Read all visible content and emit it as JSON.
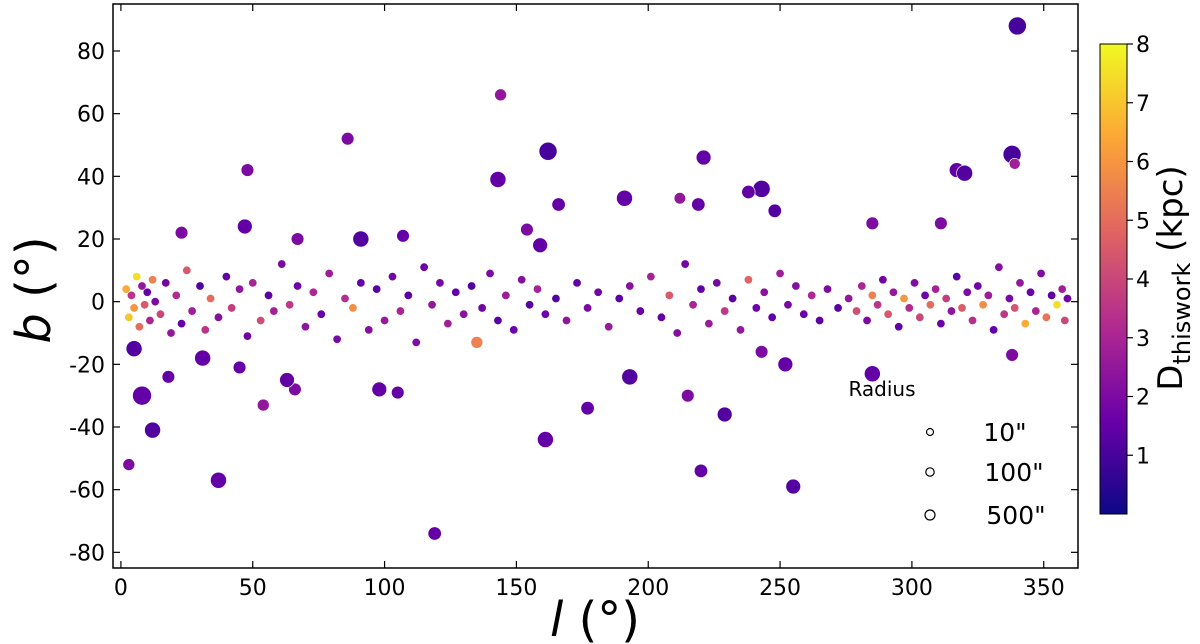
{
  "chart_data": {
    "type": "scatter",
    "xlabel_main": "l",
    "xlabel_unit": " (°)",
    "ylabel_main": "b",
    "ylabel_unit": " (°)",
    "xlim": [
      -3,
      363
    ],
    "ylim": [
      -85,
      95
    ],
    "xticks": [
      0,
      50,
      100,
      150,
      200,
      250,
      300,
      350
    ],
    "yticks": [
      -80,
      -60,
      -40,
      -20,
      0,
      20,
      40,
      60,
      80
    ],
    "grid": false,
    "colorbar": {
      "label_main": "D",
      "label_sub": "thiswork",
      "label_unit": " (kpc)",
      "range": [
        0,
        8
      ],
      "ticks": [
        1,
        2,
        3,
        4,
        5,
        6,
        7,
        8
      ],
      "colors": [
        "#0d0887",
        "#6a00a8",
        "#b12a90",
        "#e16462",
        "#fca636",
        "#f0f921"
      ]
    },
    "size_legend": {
      "title": "Radius",
      "placement": "lower-right",
      "entries": [
        {
          "label": "10\"",
          "radius_arcsec": 10
        },
        {
          "label": "100\"",
          "radius_arcsec": 100
        },
        {
          "label": "500\"",
          "radius_arcsec": 500
        }
      ]
    },
    "notable_points": [
      {
        "l": 340,
        "b": 88,
        "d": 1.0,
        "r": 300
      },
      {
        "l": 144,
        "b": 66,
        "d": 2.5,
        "r": 60
      },
      {
        "l": 86,
        "b": 52,
        "d": 2.0,
        "r": 80
      },
      {
        "l": 162,
        "b": 48,
        "d": 1.0,
        "r": 300
      },
      {
        "l": 221,
        "b": 46,
        "d": 1.5,
        "r": 150
      },
      {
        "l": 338,
        "b": 47,
        "d": 1.0,
        "r": 300
      },
      {
        "l": 339,
        "b": 44,
        "d": 2.8,
        "r": 40
      },
      {
        "l": 48,
        "b": 42,
        "d": 2.0,
        "r": 80
      },
      {
        "l": 317,
        "b": 42,
        "d": 1.5,
        "r": 150
      },
      {
        "l": 320,
        "b": 41,
        "d": 1.2,
        "r": 200
      },
      {
        "l": 143,
        "b": 39,
        "d": 1.5,
        "r": 200
      },
      {
        "l": 243,
        "b": 36,
        "d": 1.2,
        "r": 250
      },
      {
        "l": 238,
        "b": 35,
        "d": 1.5,
        "r": 100
      },
      {
        "l": 191,
        "b": 33,
        "d": 1.5,
        "r": 200
      },
      {
        "l": 212,
        "b": 33,
        "d": 2.5,
        "r": 50
      },
      {
        "l": 219,
        "b": 31,
        "d": 1.5,
        "r": 100
      },
      {
        "l": 166,
        "b": 31,
        "d": 1.5,
        "r": 100
      },
      {
        "l": 248,
        "b": 29,
        "d": 1.2,
        "r": 100
      },
      {
        "l": 285,
        "b": 25,
        "d": 2.0,
        "r": 80
      },
      {
        "l": 311,
        "b": 25,
        "d": 2.0,
        "r": 80
      },
      {
        "l": 47,
        "b": 24,
        "d": 1.5,
        "r": 150
      },
      {
        "l": 23,
        "b": 22,
        "d": 2.0,
        "r": 80
      },
      {
        "l": 154,
        "b": 23,
        "d": 2.0,
        "r": 80
      },
      {
        "l": 107,
        "b": 21,
        "d": 1.5,
        "r": 80
      },
      {
        "l": 91,
        "b": 20,
        "d": 1.2,
        "r": 200
      },
      {
        "l": 67,
        "b": 20,
        "d": 2.0,
        "r": 80
      },
      {
        "l": 159,
        "b": 18,
        "d": 1.5,
        "r": 150
      },
      {
        "l": 8,
        "b": -30,
        "d": 1.5,
        "r": 350
      },
      {
        "l": 12,
        "b": -41,
        "d": 1.2,
        "r": 200
      },
      {
        "l": 3,
        "b": -52,
        "d": 2.0,
        "r": 60
      },
      {
        "l": 5,
        "b": -15,
        "d": 1.2,
        "r": 200
      },
      {
        "l": 31,
        "b": -18,
        "d": 1.5,
        "r": 200
      },
      {
        "l": 37,
        "b": -57,
        "d": 1.5,
        "r": 200
      },
      {
        "l": 54,
        "b": -33,
        "d": 2.5,
        "r": 60
      },
      {
        "l": 66,
        "b": -28,
        "d": 2.0,
        "r": 80
      },
      {
        "l": 63,
        "b": -25,
        "d": 1.5,
        "r": 150
      },
      {
        "l": 98,
        "b": -28,
        "d": 1.5,
        "r": 150
      },
      {
        "l": 105,
        "b": -29,
        "d": 1.5,
        "r": 80
      },
      {
        "l": 119,
        "b": -74,
        "d": 1.5,
        "r": 100
      },
      {
        "l": 161,
        "b": -44,
        "d": 1.5,
        "r": 200
      },
      {
        "l": 177,
        "b": -34,
        "d": 1.5,
        "r": 100
      },
      {
        "l": 193,
        "b": -24,
        "d": 1.2,
        "r": 200
      },
      {
        "l": 215,
        "b": -30,
        "d": 2.0,
        "r": 80
      },
      {
        "l": 220,
        "b": -54,
        "d": 1.5,
        "r": 100
      },
      {
        "l": 229,
        "b": -36,
        "d": 1.2,
        "r": 150
      },
      {
        "l": 255,
        "b": -59,
        "d": 1.2,
        "r": 150
      },
      {
        "l": 252,
        "b": -20,
        "d": 1.5,
        "r": 150
      },
      {
        "l": 285,
        "b": -23,
        "d": 1.5,
        "r": 200
      },
      {
        "l": 243,
        "b": -16,
        "d": 2.0,
        "r": 80
      },
      {
        "l": 338,
        "b": -17,
        "d": 2.0,
        "r": 80
      },
      {
        "l": 135,
        "b": -13,
        "d": 5.5,
        "r": 60
      },
      {
        "l": 45,
        "b": -21,
        "d": 1.5,
        "r": 80
      },
      {
        "l": 18,
        "b": -24,
        "d": 1.5,
        "r": 80
      }
    ],
    "band_points": [
      {
        "l": 2,
        "b": 4,
        "d": 6.5
      },
      {
        "l": 3,
        "b": -5,
        "d": 7.0
      },
      {
        "l": 4,
        "b": 2,
        "d": 3.5
      },
      {
        "l": 5,
        "b": -2,
        "d": 6.0
      },
      {
        "l": 6,
        "b": 8,
        "d": 7.5
      },
      {
        "l": 7,
        "b": -8,
        "d": 5.0
      },
      {
        "l": 8,
        "b": 5,
        "d": 2.5
      },
      {
        "l": 9,
        "b": -1,
        "d": 4.5
      },
      {
        "l": 10,
        "b": 3,
        "d": 1.5
      },
      {
        "l": 11,
        "b": -6,
        "d": 3.0
      },
      {
        "l": 12,
        "b": 7,
        "d": 5.5
      },
      {
        "l": 13,
        "b": 0,
        "d": 2.0
      },
      {
        "l": 15,
        "b": -4,
        "d": 4.0
      },
      {
        "l": 17,
        "b": 6,
        "d": 1.8
      },
      {
        "l": 19,
        "b": -10,
        "d": 2.5
      },
      {
        "l": 21,
        "b": 2,
        "d": 3.2
      },
      {
        "l": 23,
        "b": -7,
        "d": 1.5
      },
      {
        "l": 25,
        "b": 10,
        "d": 4.5
      },
      {
        "l": 27,
        "b": -3,
        "d": 2.8
      },
      {
        "l": 30,
        "b": 5,
        "d": 1.2
      },
      {
        "l": 32,
        "b": -9,
        "d": 3.5
      },
      {
        "l": 34,
        "b": 1,
        "d": 5.0
      },
      {
        "l": 37,
        "b": -5,
        "d": 2.2
      },
      {
        "l": 40,
        "b": 8,
        "d": 1.5
      },
      {
        "l": 42,
        "b": -2,
        "d": 3.8
      },
      {
        "l": 45,
        "b": 4,
        "d": 2.5
      },
      {
        "l": 48,
        "b": -11,
        "d": 1.8
      },
      {
        "l": 50,
        "b": 6,
        "d": 3.0
      },
      {
        "l": 53,
        "b": -6,
        "d": 4.2
      },
      {
        "l": 56,
        "b": 2,
        "d": 1.4
      },
      {
        "l": 58,
        "b": -3,
        "d": 2.9
      },
      {
        "l": 61,
        "b": 12,
        "d": 2.0
      },
      {
        "l": 64,
        "b": -1,
        "d": 3.6
      },
      {
        "l": 67,
        "b": 5,
        "d": 1.7
      },
      {
        "l": 70,
        "b": -8,
        "d": 2.4
      },
      {
        "l": 73,
        "b": 3,
        "d": 3.1
      },
      {
        "l": 76,
        "b": -4,
        "d": 1.6
      },
      {
        "l": 79,
        "b": 9,
        "d": 2.7
      },
      {
        "l": 82,
        "b": -12,
        "d": 1.9
      },
      {
        "l": 85,
        "b": 1,
        "d": 3.3
      },
      {
        "l": 88,
        "b": -2,
        "d": 5.8
      },
      {
        "l": 91,
        "b": 6,
        "d": 1.5
      },
      {
        "l": 94,
        "b": -9,
        "d": 2.2
      },
      {
        "l": 97,
        "b": 4,
        "d": 1.3
      },
      {
        "l": 100,
        "b": -6,
        "d": 2.6
      },
      {
        "l": 103,
        "b": 8,
        "d": 1.8
      },
      {
        "l": 106,
        "b": -3,
        "d": 3.0
      },
      {
        "l": 109,
        "b": 2,
        "d": 1.4
      },
      {
        "l": 112,
        "b": -13,
        "d": 2.1
      },
      {
        "l": 115,
        "b": 11,
        "d": 1.6
      },
      {
        "l": 118,
        "b": -1,
        "d": 2.5
      },
      {
        "l": 121,
        "b": 6,
        "d": 1.9
      },
      {
        "l": 124,
        "b": -7,
        "d": 2.8
      },
      {
        "l": 127,
        "b": 3,
        "d": 1.5
      },
      {
        "l": 130,
        "b": -4,
        "d": 2.3
      },
      {
        "l": 133,
        "b": 5,
        "d": 1.2
      },
      {
        "l": 137,
        "b": -2,
        "d": 1.8
      },
      {
        "l": 140,
        "b": 9,
        "d": 2.0
      },
      {
        "l": 143,
        "b": -6,
        "d": 1.4
      },
      {
        "l": 146,
        "b": 2,
        "d": 2.7
      },
      {
        "l": 149,
        "b": -9,
        "d": 1.6
      },
      {
        "l": 152,
        "b": 7,
        "d": 2.2
      },
      {
        "l": 155,
        "b": -1,
        "d": 1.3
      },
      {
        "l": 158,
        "b": 4,
        "d": 2.9
      },
      {
        "l": 161,
        "b": -4,
        "d": 1.7
      },
      {
        "l": 165,
        "b": 1,
        "d": 1.2
      },
      {
        "l": 169,
        "b": -6,
        "d": 2.4
      },
      {
        "l": 173,
        "b": 6,
        "d": 1.5
      },
      {
        "l": 177,
        "b": -2,
        "d": 2.0
      },
      {
        "l": 181,
        "b": 3,
        "d": 1.8
      },
      {
        "l": 185,
        "b": -8,
        "d": 2.6
      },
      {
        "l": 189,
        "b": 1,
        "d": 1.4
      },
      {
        "l": 193,
        "b": 5,
        "d": 2.3
      },
      {
        "l": 197,
        "b": -3,
        "d": 1.6
      },
      {
        "l": 201,
        "b": 8,
        "d": 2.9
      },
      {
        "l": 205,
        "b": -5,
        "d": 1.5
      },
      {
        "l": 208,
        "b": 2,
        "d": 4.5
      },
      {
        "l": 211,
        "b": -10,
        "d": 2.2
      },
      {
        "l": 214,
        "b": 12,
        "d": 1.8
      },
      {
        "l": 217,
        "b": -1,
        "d": 3.0
      },
      {
        "l": 220,
        "b": 4,
        "d": 1.5
      },
      {
        "l": 223,
        "b": -7,
        "d": 2.7
      },
      {
        "l": 226,
        "b": 6,
        "d": 1.9
      },
      {
        "l": 229,
        "b": -3,
        "d": 3.6
      },
      {
        "l": 232,
        "b": 1,
        "d": 1.4
      },
      {
        "l": 235,
        "b": -9,
        "d": 2.5
      },
      {
        "l": 238,
        "b": 7,
        "d": 4.8
      },
      {
        "l": 241,
        "b": -2,
        "d": 1.7
      },
      {
        "l": 244,
        "b": 3,
        "d": 2.3
      },
      {
        "l": 247,
        "b": -5,
        "d": 1.5
      },
      {
        "l": 250,
        "b": 9,
        "d": 2.8
      },
      {
        "l": 253,
        "b": -1,
        "d": 1.9
      },
      {
        "l": 256,
        "b": 5,
        "d": 2.2
      },
      {
        "l": 259,
        "b": -4,
        "d": 1.6
      },
      {
        "l": 262,
        "b": 2,
        "d": 3.1
      },
      {
        "l": 265,
        "b": -6,
        "d": 1.4
      },
      {
        "l": 268,
        "b": 4,
        "d": 2.0
      },
      {
        "l": 272,
        "b": -2,
        "d": 1.3
      },
      {
        "l": 276,
        "b": 1,
        "d": 2.5
      },
      {
        "l": 279,
        "b": -3,
        "d": 4.2
      },
      {
        "l": 281,
        "b": 5,
        "d": 3.0
      },
      {
        "l": 283,
        "b": -6,
        "d": 2.0
      },
      {
        "l": 285,
        "b": 2,
        "d": 5.5
      },
      {
        "l": 287,
        "b": -1,
        "d": 3.5
      },
      {
        "l": 289,
        "b": 7,
        "d": 1.8
      },
      {
        "l": 291,
        "b": -4,
        "d": 4.5
      },
      {
        "l": 293,
        "b": 3,
        "d": 2.6
      },
      {
        "l": 295,
        "b": -8,
        "d": 1.5
      },
      {
        "l": 297,
        "b": 1,
        "d": 6.0
      },
      {
        "l": 299,
        "b": -2,
        "d": 3.2
      },
      {
        "l": 301,
        "b": 6,
        "d": 2.1
      },
      {
        "l": 303,
        "b": -5,
        "d": 4.0
      },
      {
        "l": 305,
        "b": 2,
        "d": 1.7
      },
      {
        "l": 307,
        "b": -1,
        "d": 5.0
      },
      {
        "l": 309,
        "b": 4,
        "d": 2.9
      },
      {
        "l": 311,
        "b": -7,
        "d": 1.6
      },
      {
        "l": 313,
        "b": 1,
        "d": 3.8
      },
      {
        "l": 315,
        "b": -3,
        "d": 2.4
      },
      {
        "l": 317,
        "b": 8,
        "d": 1.4
      },
      {
        "l": 319,
        "b": -2,
        "d": 4.6
      },
      {
        "l": 321,
        "b": 3,
        "d": 2.0
      },
      {
        "l": 323,
        "b": -6,
        "d": 3.3
      },
      {
        "l": 325,
        "b": 5,
        "d": 1.8
      },
      {
        "l": 327,
        "b": -1,
        "d": 5.8
      },
      {
        "l": 329,
        "b": 2,
        "d": 2.7
      },
      {
        "l": 331,
        "b": -9,
        "d": 1.5
      },
      {
        "l": 333,
        "b": 11,
        "d": 2.2
      },
      {
        "l": 335,
        "b": -4,
        "d": 3.6
      },
      {
        "l": 337,
        "b": 1,
        "d": 1.9
      },
      {
        "l": 339,
        "b": -2,
        "d": 4.4
      },
      {
        "l": 341,
        "b": 6,
        "d": 2.5
      },
      {
        "l": 343,
        "b": -7,
        "d": 6.5
      },
      {
        "l": 345,
        "b": 3,
        "d": 1.6
      },
      {
        "l": 347,
        "b": -3,
        "d": 3.0
      },
      {
        "l": 349,
        "b": 9,
        "d": 2.1
      },
      {
        "l": 351,
        "b": -5,
        "d": 5.2
      },
      {
        "l": 353,
        "b": 2,
        "d": 1.4
      },
      {
        "l": 355,
        "b": -1,
        "d": 7.5
      },
      {
        "l": 357,
        "b": 4,
        "d": 2.8
      },
      {
        "l": 358,
        "b": -6,
        "d": 4.0
      },
      {
        "l": 359,
        "b": 1,
        "d": 1.7
      }
    ]
  }
}
